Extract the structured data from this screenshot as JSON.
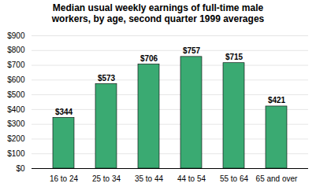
{
  "chart_data": {
    "type": "bar",
    "title": "Median usual weekly earnings of full-time male\nworkers, by age, second quarter 1999 averages",
    "categories": [
      "16 to 24",
      "25 to 34",
      "35 to 44",
      "44 to 54",
      "55 to 64",
      "65 and over"
    ],
    "values": [
      344,
      573,
      706,
      757,
      715,
      421
    ],
    "value_labels": [
      "$344",
      "$573",
      "$706",
      "$757",
      "$715",
      "$421"
    ],
    "data_labels": true,
    "color": "#3aaa72",
    "ylim": [
      0,
      900
    ],
    "yticks": [
      {
        "value": 0,
        "label": "$0"
      },
      {
        "value": 100,
        "label": "$100"
      },
      {
        "value": 200,
        "label": "$200"
      },
      {
        "value": 300,
        "label": "$300"
      },
      {
        "value": 400,
        "label": "$400"
      },
      {
        "value": 500,
        "label": "$500"
      },
      {
        "value": 600,
        "label": "$600"
      },
      {
        "value": 700,
        "label": "$700"
      },
      {
        "value": 800,
        "label": "$800"
      },
      {
        "value": 900,
        "label": "$900"
      }
    ],
    "grid": true
  }
}
